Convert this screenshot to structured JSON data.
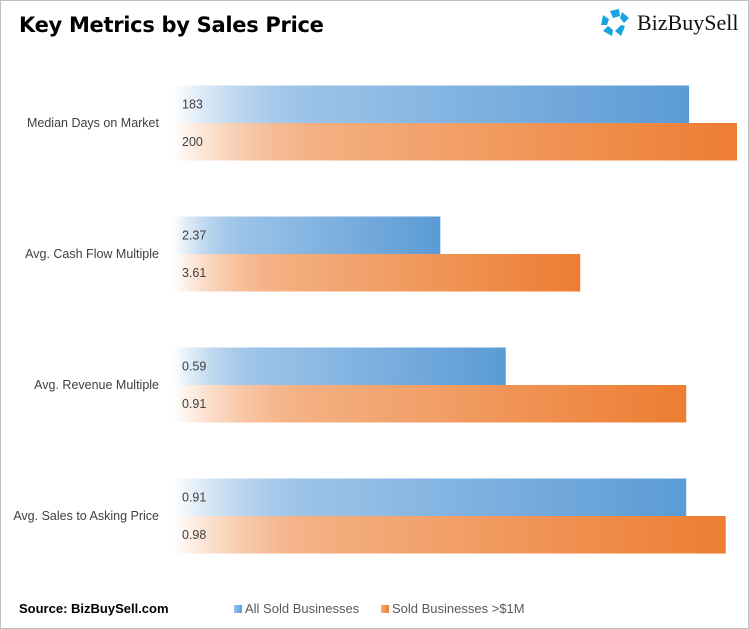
{
  "title": "Key Metrics by Sales Price",
  "logo_text": "BizBuySell",
  "source": "Source: BizBuySell.com",
  "colors": {
    "all": "#5B9BD5",
    "over1m": "#ED7D31",
    "logo": "#1aa3e0"
  },
  "chart_data": {
    "type": "bar",
    "orientation": "horizontal",
    "title": "Key Metrics by Sales Price",
    "categories": [
      "Median Days on Market",
      "Avg. Cash Flow Multiple",
      "Avg. Revenue Multiple",
      "Avg. Sales to Asking Price"
    ],
    "category_axis_max": [
      200,
      5,
      1,
      1
    ],
    "series": [
      {
        "name": "All Sold Businesses",
        "values": [
          183,
          2.37,
          0.59,
          0.91
        ],
        "labels": [
          "183",
          "2.37",
          "0.59",
          "0.91"
        ]
      },
      {
        "name": "Sold Businesses >$1M",
        "values": [
          200,
          3.61,
          0.91,
          0.98
        ],
        "labels": [
          "200",
          "3.61",
          "0.91",
          "0.98"
        ]
      }
    ],
    "legend": "bottom",
    "grid": false
  }
}
